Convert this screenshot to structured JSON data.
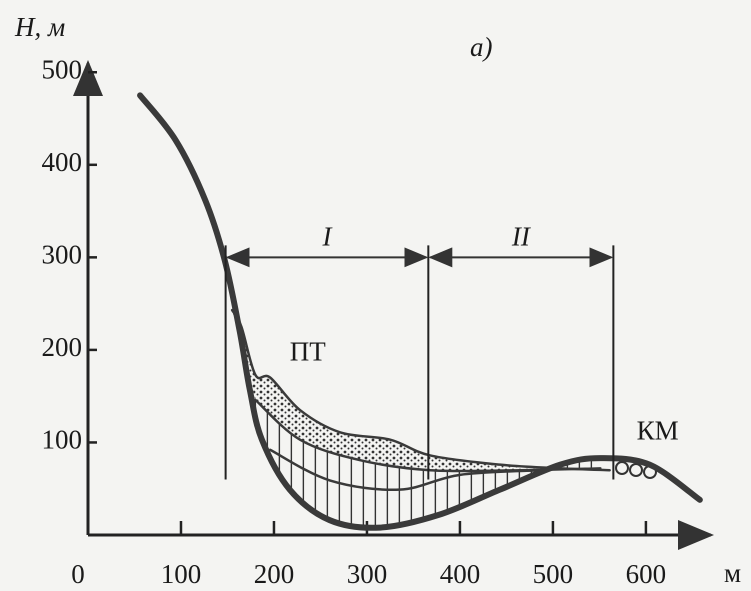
{
  "chart_data": {
    "type": "line",
    "title": "а)",
    "y_label": "H, м",
    "x_label": "м",
    "xlim": [
      0,
      670
    ],
    "ylim": [
      0,
      510
    ],
    "xticks": [
      0,
      100,
      200,
      300,
      400,
      500,
      600
    ],
    "yticks": [
      100,
      200,
      300,
      400,
      500
    ],
    "color": "#3a3a3a",
    "series": [
      {
        "color": "#3a3a3a",
        "x": [
          56,
          94,
          126,
          147,
          163,
          174,
          187,
          217,
          260,
          314,
          378,
          443,
          508,
          551,
          604,
          658
        ],
        "values": [
          475,
          427,
          362,
          297,
          221,
          157,
          103,
          49,
          16,
          8,
          22,
          49,
          76,
          83,
          76,
          38
        ]
      },
      {
        "color": "#3a3a3a",
        "x": [
          155,
          165,
          180,
          196,
          228,
          271,
          325,
          368,
          443,
          508,
          561
        ],
        "values": [
          243,
          225,
          173,
          170,
          135,
          111,
          103,
          86,
          76,
          72,
          70
        ]
      },
      {
        "color": "#3a3a3a",
        "x": [
          180,
          228,
          292,
          368,
          465,
          551
        ],
        "values": [
          146,
          103,
          81,
          70,
          70,
          72
        ]
      },
      {
        "color": "#3a3a3a",
        "x": [
          196,
          260,
          335,
          400,
          486
        ],
        "values": [
          92,
          59,
          49,
          65,
          70
        ]
      }
    ],
    "zones": [
      {
        "label": "I",
        "from": 148,
        "to": 366
      },
      {
        "label": "II",
        "from": 366,
        "to": 565
      }
    ],
    "zone_arrow_y": 300,
    "annotations": [
      "ПТ",
      "КМ"
    ]
  }
}
